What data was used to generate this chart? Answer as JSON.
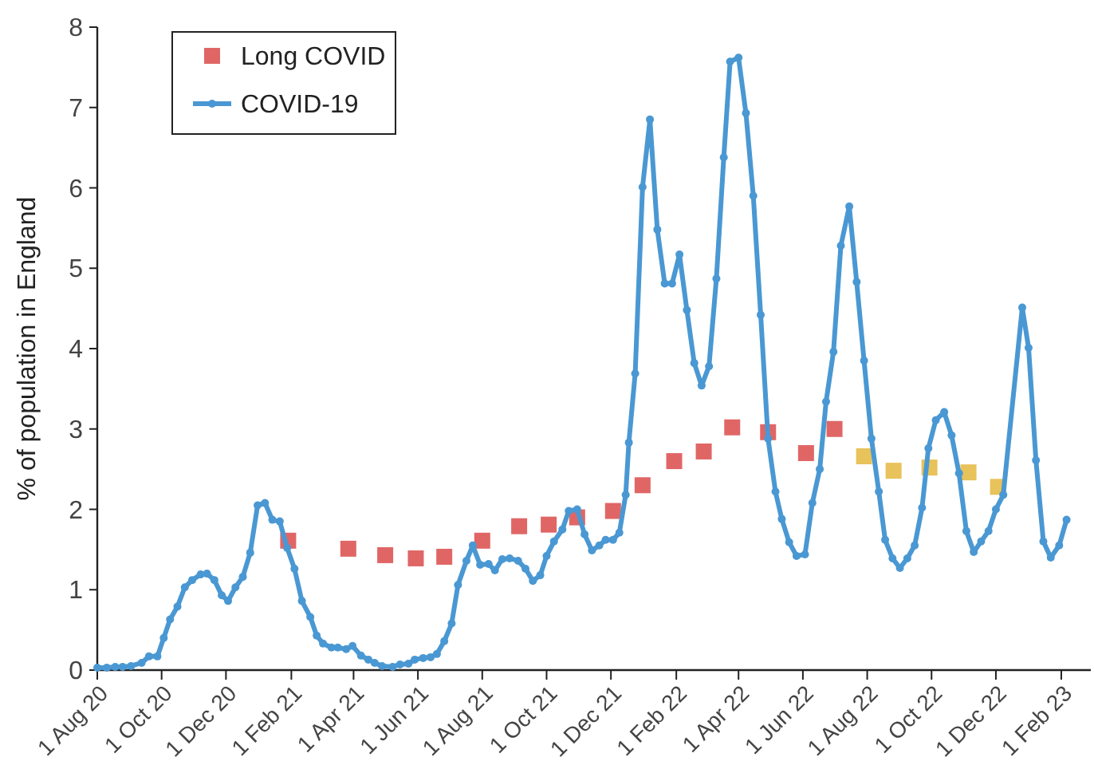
{
  "chart_data": {
    "type": "line",
    "ylabel": "% of population in England",
    "xlim": [
      "2020-08-01",
      "2023-03-01"
    ],
    "xticks": [
      {
        "value": "2020-08-01",
        "label": "1 Aug 20"
      },
      {
        "value": "2020-10-01",
        "label": "1 Oct 20"
      },
      {
        "value": "2020-12-01",
        "label": "1 Dec 20"
      },
      {
        "value": "2021-02-01",
        "label": "1 Feb 21"
      },
      {
        "value": "2021-04-01",
        "label": "1 Apr 21"
      },
      {
        "value": "2021-06-01",
        "label": "1 Jun 21"
      },
      {
        "value": "2021-08-01",
        "label": "1 Aug 21"
      },
      {
        "value": "2021-10-01",
        "label": "1 Oct 21"
      },
      {
        "value": "2021-12-01",
        "label": "1 Dec 21"
      },
      {
        "value": "2022-02-01",
        "label": "1 Feb 22"
      },
      {
        "value": "2022-04-01",
        "label": "1 Apr 22"
      },
      {
        "value": "2022-06-01",
        "label": "1 Jun 22"
      },
      {
        "value": "2022-08-01",
        "label": "1 Aug 22"
      },
      {
        "value": "2022-10-01",
        "label": "1 Oct 22"
      },
      {
        "value": "2022-12-01",
        "label": "1 Dec 22"
      },
      {
        "value": "2023-02-01",
        "label": "1 Feb 23"
      }
    ],
    "ylim": [
      0,
      8
    ],
    "yticks": [
      0,
      1,
      2,
      3,
      4,
      5,
      6,
      7,
      8
    ],
    "grid": false,
    "legend": "top left",
    "series": [
      {
        "name": "Long COVID",
        "type": "scatter",
        "marker": "square",
        "color": "#e06666",
        "colors": [
          "#e06666",
          "#e06666",
          "#e06666",
          "#e06666",
          "#e06666",
          "#e06666",
          "#e06666",
          "#e06666",
          "#e06666",
          "#e06666",
          "#e06666",
          "#e06666",
          "#e06666",
          "#e06666",
          "#e06666",
          "#e06666",
          "#e06666",
          "#e8c25a",
          "#e8c25a",
          "#e8c25a",
          "#e8c25a",
          "#e8c25a"
        ],
        "x": [
          "2021-01-29",
          "2021-03-27",
          "2021-05-01",
          "2021-05-30",
          "2021-06-26",
          "2021-08-01",
          "2021-09-05",
          "2021-10-03",
          "2021-10-30",
          "2021-12-03",
          "2021-12-31",
          "2022-01-30",
          "2022-02-27",
          "2022-03-26",
          "2022-04-29",
          "2022-06-04",
          "2022-07-01",
          "2022-07-29",
          "2022-08-26",
          "2022-09-29",
          "2022-11-05",
          "2022-12-03"
        ],
        "values": [
          1.61,
          1.51,
          1.43,
          1.39,
          1.41,
          1.61,
          1.79,
          1.81,
          1.9,
          1.98,
          2.3,
          2.6,
          2.72,
          3.02,
          2.96,
          2.7,
          3.0,
          2.66,
          2.48,
          2.52,
          2.46,
          2.28
        ]
      },
      {
        "name": "COVID-19",
        "marker": "circle",
        "line_style": "solid",
        "color": "#4a98d3",
        "x": [
          "2020-08-01",
          "2020-08-10",
          "2020-08-18",
          "2020-08-25",
          "2020-09-02",
          "2020-09-12",
          "2020-09-19",
          "2020-09-27",
          "2020-10-03",
          "2020-10-09",
          "2020-10-16",
          "2020-10-23",
          "2020-10-30",
          "2020-11-07",
          "2020-11-13",
          "2020-11-20",
          "2020-11-27",
          "2020-12-03",
          "2020-12-10",
          "2020-12-17",
          "2020-12-24",
          "2020-12-31",
          "2021-01-07",
          "2021-01-14",
          "2021-01-21",
          "2021-01-28",
          "2021-02-04",
          "2021-02-11",
          "2021-02-19",
          "2021-02-25",
          "2021-03-03",
          "2021-03-11",
          "2021-03-17",
          "2021-03-25",
          "2021-03-31",
          "2021-04-08",
          "2021-04-15",
          "2021-04-21",
          "2021-04-28",
          "2021-05-08",
          "2021-05-15",
          "2021-05-23",
          "2021-05-29",
          "2021-06-06",
          "2021-06-13",
          "2021-06-19",
          "2021-06-26",
          "2021-07-03",
          "2021-07-09",
          "2021-07-17",
          "2021-07-23",
          "2021-07-30",
          "2021-08-07",
          "2021-08-13",
          "2021-08-20",
          "2021-08-27",
          "2021-09-04",
          "2021-09-11",
          "2021-09-18",
          "2021-09-25",
          "2021-10-01",
          "2021-10-08",
          "2021-10-16",
          "2021-10-22",
          "2021-10-30",
          "2021-11-06",
          "2021-11-13",
          "2021-11-20",
          "2021-11-26",
          "2021-12-03",
          "2021-12-09",
          "2021-12-15",
          "2021-12-18",
          "2021-12-24",
          "2021-12-31",
          "2022-01-07",
          "2022-01-14",
          "2022-01-21",
          "2022-01-28",
          "2022-02-04",
          "2022-02-11",
          "2022-02-18",
          "2022-02-25",
          "2022-03-04",
          "2022-03-11",
          "2022-03-18",
          "2022-03-24",
          "2022-04-01",
          "2022-04-08",
          "2022-04-15",
          "2022-04-22",
          "2022-04-29",
          "2022-05-06",
          "2022-05-12",
          "2022-05-19",
          "2022-05-26",
          "2022-06-03",
          "2022-06-10",
          "2022-06-17",
          "2022-06-23",
          "2022-06-30",
          "2022-07-07",
          "2022-07-15",
          "2022-07-22",
          "2022-07-29",
          "2022-08-05",
          "2022-08-12",
          "2022-08-18",
          "2022-08-25",
          "2022-09-01",
          "2022-09-08",
          "2022-09-15",
          "2022-09-22",
          "2022-09-28",
          "2022-10-05",
          "2022-10-13",
          "2022-10-20",
          "2022-10-27",
          "2022-11-03",
          "2022-11-10",
          "2022-11-17",
          "2022-11-24",
          "2022-12-01",
          "2022-12-08",
          "2022-12-26",
          "2023-01-01",
          "2023-01-08",
          "2023-01-15",
          "2023-01-22",
          "2023-01-30",
          "2023-02-06"
        ],
        "values": [
          0.03,
          0.03,
          0.04,
          0.04,
          0.05,
          0.09,
          0.17,
          0.17,
          0.4,
          0.63,
          0.79,
          1.03,
          1.12,
          1.19,
          1.2,
          1.12,
          0.93,
          0.86,
          1.03,
          1.16,
          1.46,
          2.05,
          2.08,
          1.87,
          1.85,
          1.52,
          1.26,
          0.86,
          0.66,
          0.43,
          0.33,
          0.28,
          0.28,
          0.26,
          0.3,
          0.18,
          0.13,
          0.09,
          0.05,
          0.04,
          0.07,
          0.08,
          0.13,
          0.15,
          0.16,
          0.2,
          0.36,
          0.58,
          1.06,
          1.36,
          1.55,
          1.31,
          1.32,
          1.24,
          1.38,
          1.39,
          1.36,
          1.26,
          1.11,
          1.18,
          1.42,
          1.6,
          1.75,
          1.98,
          2.0,
          1.69,
          1.49,
          1.55,
          1.62,
          1.62,
          1.71,
          2.18,
          2.83,
          3.69,
          6.01,
          6.85,
          5.48,
          4.81,
          4.81,
          5.17,
          4.48,
          3.82,
          3.54,
          3.78,
          4.87,
          6.38,
          7.57,
          7.62,
          6.93,
          5.9,
          4.42,
          2.88,
          2.22,
          1.88,
          1.59,
          1.42,
          1.44,
          2.08,
          2.5,
          3.34,
          3.96,
          5.28,
          5.77,
          4.83,
          3.85,
          2.88,
          2.22,
          1.62,
          1.39,
          1.27,
          1.39,
          1.55,
          2.02,
          2.76,
          3.11,
          3.21,
          2.92,
          2.45,
          1.73,
          1.47,
          1.6,
          1.73,
          2.0,
          2.18,
          4.51,
          4.01,
          2.61,
          1.6,
          1.4,
          1.55,
          1.87
        ]
      }
    ]
  }
}
